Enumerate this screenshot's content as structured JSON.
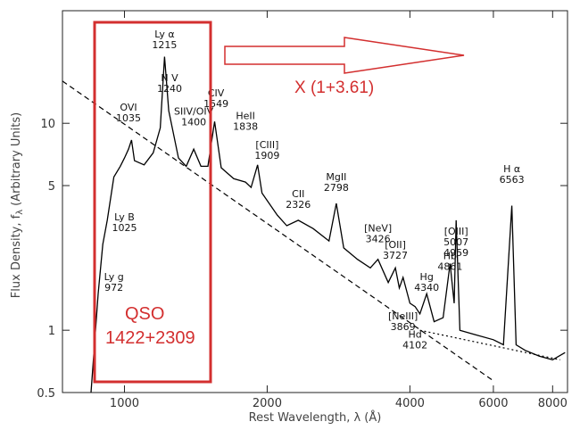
{
  "chart_data": {
    "type": "line",
    "xlabel": "Rest Wavelength, λ (Å)",
    "ylabel": "Flux Density, f",
    "ylabel_sub": "λ",
    "ylabel_unit": "(Arbitrary Units)",
    "x_scale": "log",
    "y_scale": "log",
    "xlim": [
      740,
      8600
    ],
    "ylim": [
      0.5,
      35
    ],
    "x_ticks": [
      1000,
      2000,
      4000,
      6000,
      8000
    ],
    "x_tick_labels": [
      "1000",
      "2000",
      "4000",
      "6000",
      "8000"
    ],
    "y_ticks": [
      0.5,
      1,
      5,
      10
    ],
    "y_tick_labels": [
      "0.5",
      "1",
      "5",
      "10"
    ],
    "series": [
      {
        "style": "solid",
        "points": [
          [
            850,
            0.5
          ],
          [
            880,
            1.5
          ],
          [
            900,
            2.6
          ],
          [
            920,
            3.4
          ],
          [
            950,
            5.5
          ],
          [
            980,
            6.2
          ],
          [
            1000,
            6.8
          ],
          [
            1020,
            7.5
          ],
          [
            1035,
            8.3
          ],
          [
            1050,
            6.6
          ],
          [
            1100,
            6.3
          ],
          [
            1150,
            7.2
          ],
          [
            1190,
            9.5
          ],
          [
            1215,
            21
          ],
          [
            1240,
            11.5
          ],
          [
            1300,
            6.8
          ],
          [
            1350,
            6.2
          ],
          [
            1400,
            7.5
          ],
          [
            1450,
            6.2
          ],
          [
            1500,
            6.2
          ],
          [
            1549,
            10.2
          ],
          [
            1600,
            6.1
          ],
          [
            1700,
            5.4
          ],
          [
            1800,
            5.2
          ],
          [
            1850,
            4.9
          ],
          [
            1909,
            6.3
          ],
          [
            1950,
            4.6
          ],
          [
            2100,
            3.6
          ],
          [
            2200,
            3.2
          ],
          [
            2326,
            3.4
          ],
          [
            2500,
            3.1
          ],
          [
            2700,
            2.7
          ],
          [
            2798,
            4.1
          ],
          [
            2900,
            2.5
          ],
          [
            3100,
            2.2
          ],
          [
            3300,
            2.0
          ],
          [
            3426,
            2.2
          ],
          [
            3600,
            1.7
          ],
          [
            3727,
            2.0
          ],
          [
            3800,
            1.6
          ],
          [
            3869,
            1.8
          ],
          [
            4000,
            1.35
          ],
          [
            4102,
            1.3
          ],
          [
            4200,
            1.2
          ],
          [
            4340,
            1.5
          ],
          [
            4500,
            1.1
          ],
          [
            4700,
            1.15
          ],
          [
            4861,
            2.1
          ],
          [
            4959,
            1.35
          ],
          [
            5007,
            3.4
          ],
          [
            5100,
            1.0
          ],
          [
            5500,
            0.95
          ],
          [
            6000,
            0.9
          ],
          [
            6300,
            0.85
          ],
          [
            6563,
            4.0
          ],
          [
            6700,
            0.85
          ],
          [
            7000,
            0.8
          ],
          [
            7500,
            0.75
          ],
          [
            8000,
            0.72
          ],
          [
            8500,
            0.78
          ]
        ]
      },
      {
        "style": "dashed",
        "points": [
          [
            740,
            16
          ],
          [
            6000,
            0.57
          ]
        ]
      },
      {
        "style": "dotted",
        "points": [
          [
            4200,
            1.0
          ],
          [
            8300,
            0.72
          ]
        ]
      }
    ],
    "annotations": [
      {
        "label": "Ly α",
        "wavelength": "1215",
        "at": [
          1215,
          26
        ]
      },
      {
        "label": "N V",
        "wavelength": "1240",
        "at": [
          1245,
          16
        ]
      },
      {
        "label": "OVI",
        "wavelength": "1035",
        "at": [
          1020,
          11.5
        ]
      },
      {
        "label": "SIIV/OIV",
        "wavelength": "1400",
        "at": [
          1400,
          11
        ]
      },
      {
        "label": "CIV",
        "wavelength": "1549",
        "at": [
          1560,
          13.5
        ]
      },
      {
        "label": "HeII",
        "wavelength": "1838",
        "at": [
          1800,
          10.5
        ]
      },
      {
        "label": "[CIII]",
        "wavelength": "1909",
        "at": [
          2000,
          7.6
        ]
      },
      {
        "label": "CII",
        "wavelength": "2326",
        "at": [
          2326,
          4.4
        ]
      },
      {
        "label": "MgII",
        "wavelength": "2798",
        "at": [
          2798,
          5.3
        ]
      },
      {
        "label": "[NeV]",
        "wavelength": "3426",
        "at": [
          3426,
          3.0
        ]
      },
      {
        "label": "[OII]",
        "wavelength": "3727",
        "at": [
          3727,
          2.5
        ]
      },
      {
        "label": "Hg",
        "wavelength": "4340",
        "at": [
          4340,
          1.75
        ]
      },
      {
        "label": "Hb",
        "wavelength": "4861",
        "at": [
          4861,
          2.2
        ]
      },
      {
        "label": "[OIII]",
        "wavelength": "5007",
        "wavelength2": "4959",
        "at": [
          5007,
          2.9
        ]
      },
      {
        "label": "H α",
        "wavelength": "6563",
        "at": [
          6563,
          5.8
        ]
      },
      {
        "label": "[NeIII]",
        "wavelength": "3869",
        "at": [
          3869,
          1.13
        ]
      },
      {
        "label": "Hd",
        "wavelength": "4102",
        "at": [
          4102,
          0.92
        ]
      },
      {
        "label": "Ly B",
        "wavelength": "1025",
        "at": [
          1000,
          3.4
        ]
      },
      {
        "label": "Ly g",
        "wavelength": "972",
        "at": [
          950,
          1.75
        ]
      }
    ]
  },
  "overlay": {
    "object_name": "QSO",
    "object_id": "1422+2309",
    "redshift_label": "X (1+3.61)",
    "box_color": "#d32f2f",
    "arrow_color": "#d32f2f"
  }
}
